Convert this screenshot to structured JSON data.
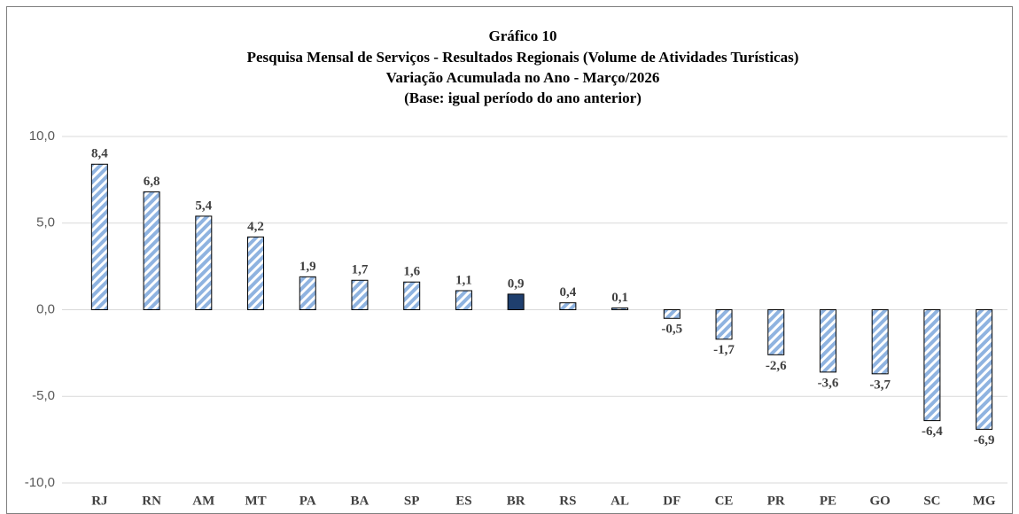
{
  "chart_data": {
    "type": "bar",
    "title": [
      "Gráfico 10",
      "Pesquisa Mensal de Serviços - Resultados Regionais (Volume de Atividades Turísticas)",
      "Variação Acumulada no Ano - Março/2026",
      "(Base: igual período do ano anterior)"
    ],
    "categories": [
      "RJ",
      "RN",
      "AM",
      "MT",
      "PA",
      "BA",
      "SP",
      "ES",
      "BR",
      "RS",
      "AL",
      "DF",
      "CE",
      "PR",
      "PE",
      "GO",
      "SC",
      "MG"
    ],
    "values": [
      8.4,
      6.8,
      5.4,
      4.2,
      1.9,
      1.7,
      1.6,
      1.1,
      0.9,
      0.4,
      0.1,
      -0.5,
      -1.7,
      -2.6,
      -3.6,
      -3.7,
      -6.4,
      -6.9
    ],
    "value_labels": [
      "8,4",
      "6,8",
      "5,4",
      "4,2",
      "1,9",
      "1,7",
      "1,6",
      "1,1",
      "0,9",
      "0,4",
      "0,1",
      "-0,5",
      "-1,7",
      "-2,6",
      "-3,6",
      "-3,7",
      "-6,4",
      "-6,9"
    ],
    "colors": [
      "#8fb3e0",
      "#8fb3e0",
      "#8fb3e0",
      "#8fb3e0",
      "#8fb3e0",
      "#8fb3e0",
      "#8fb3e0",
      "#8fb3e0",
      "#1f3f6e",
      "#8fb3e0",
      "#8fb3e0",
      "#8fb3e0",
      "#8fb3e0",
      "#8fb3e0",
      "#8fb3e0",
      "#8fb3e0",
      "#8fb3e0",
      "#8fb3e0"
    ],
    "hatched": [
      true,
      true,
      true,
      true,
      true,
      true,
      true,
      true,
      false,
      true,
      true,
      true,
      true,
      true,
      true,
      true,
      true,
      true
    ],
    "ylim": [
      -10,
      10
    ],
    "yticks": [
      {
        "value": -10,
        "label": "-10,0"
      },
      {
        "value": -5,
        "label": "-5,0"
      },
      {
        "value": 0,
        "label": "0,0"
      },
      {
        "value": 5,
        "label": "5,0"
      },
      {
        "value": 10,
        "label": "10,0"
      }
    ],
    "grid": true
  }
}
